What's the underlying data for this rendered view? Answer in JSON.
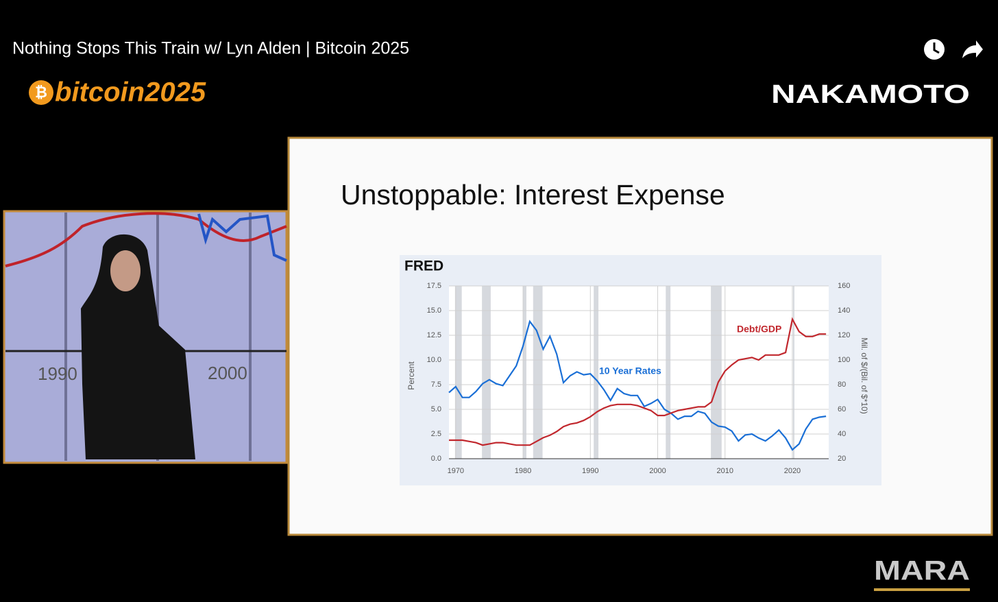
{
  "header": {
    "title": "Nothing Stops This Train w/ Lyn Alden | Bitcoin 2025"
  },
  "branding": {
    "event": "bitcoin2025",
    "sponsor": "NAKAMOTO",
    "corner": "MARA"
  },
  "speaker_panel": {
    "labels": [
      "1990",
      "2000"
    ]
  },
  "slide": {
    "title": "Unstoppable: Interest Expense"
  },
  "chart_data": {
    "type": "line",
    "source": "FRED",
    "y_label": "Percent",
    "y2_label": "Mil. of $/(Bil. of $*10)",
    "annotations": [
      "10 Year Rates",
      "Debt/GDP"
    ],
    "x": [
      1969,
      1970,
      1971,
      1972,
      1973,
      1974,
      1975,
      1976,
      1977,
      1978,
      1979,
      1980,
      1981,
      1982,
      1983,
      1984,
      1985,
      1986,
      1987,
      1988,
      1989,
      1990,
      1991,
      1992,
      1993,
      1994,
      1995,
      1996,
      1997,
      1998,
      1999,
      2000,
      2001,
      2002,
      2003,
      2004,
      2005,
      2006,
      2007,
      2008,
      2009,
      2010,
      2011,
      2012,
      2013,
      2014,
      2015,
      2016,
      2017,
      2018,
      2019,
      2020,
      2021,
      2022,
      2023,
      2024,
      2025
    ],
    "series": [
      {
        "name": "10 Year Rates",
        "color": "#1a6fd6",
        "values": [
          6.7,
          7.3,
          6.2,
          6.2,
          6.8,
          7.6,
          8.0,
          7.6,
          7.4,
          8.4,
          9.4,
          11.4,
          13.9,
          13.0,
          11.1,
          12.4,
          10.6,
          7.7,
          8.4,
          8.8,
          8.5,
          8.6,
          7.9,
          7.0,
          5.9,
          7.1,
          6.6,
          6.4,
          6.4,
          5.3,
          5.6,
          6.0,
          5.0,
          4.6,
          4.0,
          4.3,
          4.3,
          4.8,
          4.6,
          3.7,
          3.3,
          3.2,
          2.8,
          1.8,
          2.4,
          2.5,
          2.1,
          1.8,
          2.3,
          2.9,
          2.1,
          0.9,
          1.5,
          3.0,
          4.0,
          4.2,
          4.3
        ]
      },
      {
        "name": "Debt/GDP",
        "color": "#c1272d",
        "axis": "y2",
        "values": [
          35,
          35,
          35,
          34,
          33,
          31,
          32,
          33,
          33,
          32,
          31,
          31,
          31,
          34,
          37,
          39,
          42,
          46,
          48,
          49,
          51,
          54,
          58,
          61,
          63,
          64,
          64,
          64,
          63,
          61,
          59,
          55,
          55,
          57,
          59,
          60,
          61,
          62,
          62,
          66,
          82,
          91,
          96,
          100,
          101,
          102,
          100,
          104,
          104,
          104,
          106,
          133,
          123,
          119,
          119,
          121,
          121
        ]
      }
    ],
    "recessions": [
      [
        1969.9,
        1970.9
      ],
      [
        1973.9,
        1975.2
      ],
      [
        1980.0,
        1980.5
      ],
      [
        1981.5,
        1982.9
      ],
      [
        1990.5,
        1991.2
      ],
      [
        2001.2,
        2001.9
      ],
      [
        2007.9,
        2009.5
      ],
      [
        2020.1,
        2020.3
      ]
    ],
    "xlim": [
      1969,
      2025.4
    ],
    "xticks": [
      1970,
      1980,
      1990,
      2000,
      2010,
      2020
    ],
    "ylim": [
      0,
      17.5
    ],
    "yticks": [
      {
        "value": 0,
        "label": "0.0"
      },
      2.5,
      {
        "value": 5,
        "label": "5.0"
      },
      7.5,
      {
        "value": 10,
        "label": "10.0"
      },
      12.5,
      {
        "value": 15,
        "label": "15.0"
      },
      17.5
    ],
    "y2lim": [
      20,
      160
    ],
    "y2ticks": [
      20,
      40,
      60,
      80,
      100,
      120,
      140,
      160
    ],
    "grid": true
  }
}
